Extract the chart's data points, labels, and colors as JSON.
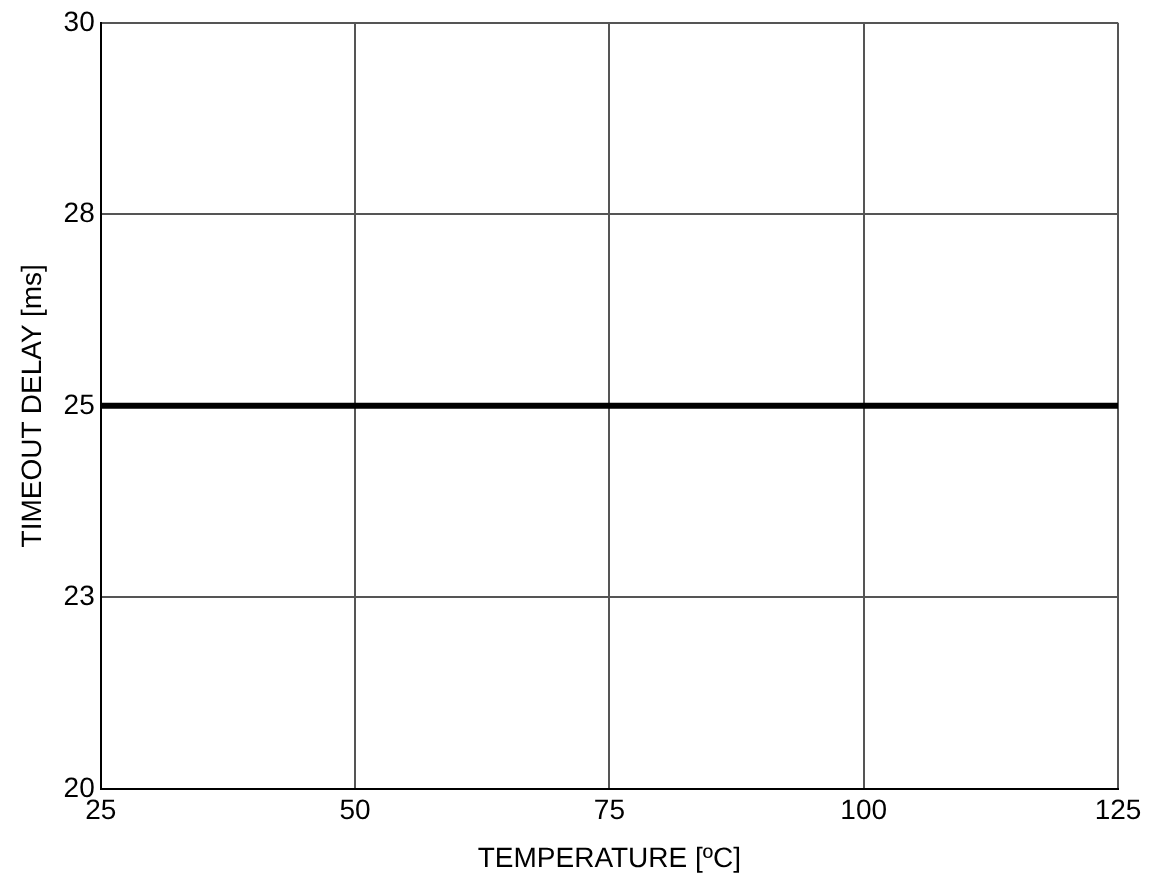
{
  "chart_data": {
    "type": "line",
    "xlabel": "TEMPERATURE [ºC]",
    "ylabel": "TIMEOUT DELAY [ms]",
    "x": [
      25,
      125
    ],
    "series": [
      {
        "color": "#000000",
        "values": [
          25,
          25
        ]
      }
    ],
    "xlim": [
      25,
      125
    ],
    "xticks": [
      25,
      50,
      75,
      100,
      125
    ],
    "ylim": [
      20,
      30
    ],
    "yticks": [
      20,
      {
        "value": 22.5,
        "label": "23"
      },
      25,
      {
        "value": 27.5,
        "label": "28"
      },
      30
    ],
    "grid": true,
    "legend": false,
    "marker": "none",
    "line_style": "solid"
  }
}
